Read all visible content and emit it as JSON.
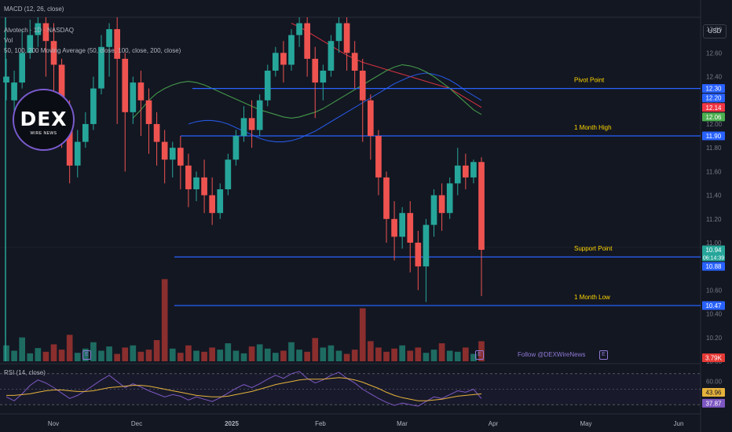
{
  "indicators": {
    "macd": "MACD (12, 26, close)",
    "symbol": "Alvotech · 1D · NASDAQ",
    "vol": "Vol",
    "ma": "50, 100, 200 Moving Average (50, close, 100, close, 200, close)",
    "rsi": "RSI (14, close)"
  },
  "currency": "USD",
  "follow_text": "Follow @DEXWireNews",
  "event_icon": "E",
  "logo": {
    "big": "DEX",
    "small": "WIRE NEWS"
  },
  "colors": {
    "up": "#26a69a",
    "down": "#ef5350",
    "level": "#2962ff",
    "ma50": "#4caf50",
    "ma100": "#2962ff",
    "ma200": "#f23645",
    "rsi": "#7e57c2",
    "rsi_ma": "#e6b23c",
    "annotation": "#ffd600"
  },
  "chart_data": {
    "type": "candlestick",
    "x_ticks": [
      "Nov",
      "Dec",
      "2025",
      "Feb",
      "Mar",
      "Apr",
      "May",
      "Jun"
    ],
    "y_ticks": [
      "12.80",
      "12.60",
      "12.40",
      "12.20",
      "12.00",
      "11.80",
      "11.60",
      "11.40",
      "11.20",
      "11.00",
      "10.80",
      "10.60",
      "10.40",
      "10.20",
      "10.00"
    ],
    "ylim": [
      10.0,
      12.9
    ],
    "levels": [
      {
        "name": "Pivot Point",
        "value": 12.3
      },
      {
        "name": "1 Month High",
        "value": 11.9
      },
      {
        "name": "Support Point",
        "value": 10.88
      },
      {
        "name": "1 Month Low",
        "value": 10.47
      }
    ],
    "price_badges": [
      {
        "label": "12.30",
        "value": 12.3,
        "color": "#2962ff"
      },
      {
        "label": "12.20",
        "value": 12.22,
        "color": "#2962ff"
      },
      {
        "label": "12.14",
        "value": 12.14,
        "color": "#f23645"
      },
      {
        "label": "12.06",
        "value": 12.06,
        "color": "#4caf50"
      },
      {
        "label": "11.90",
        "value": 11.9,
        "color": "#2962ff"
      },
      {
        "label": "10.94",
        "value": 10.94,
        "color": "#26a69a",
        "sub": "06:14:39"
      },
      {
        "label": "10.88",
        "value": 10.8,
        "color": "#2962ff"
      },
      {
        "label": "10.47",
        "value": 10.47,
        "color": "#2962ff"
      }
    ],
    "volume_badge": "3.79K",
    "candles": [
      [
        12.35,
        12.55,
        12.4,
        12.2
      ],
      [
        12.2,
        12.45,
        12.35,
        12.05
      ],
      [
        12.35,
        12.8,
        12.6,
        12.3
      ],
      [
        12.6,
        12.88,
        12.75,
        12.55
      ],
      [
        12.75,
        12.9,
        12.85,
        12.65
      ],
      [
        12.85,
        12.9,
        12.7,
        12.4
      ],
      [
        12.7,
        12.85,
        12.5,
        12.1
      ],
      [
        12.5,
        12.55,
        12.1,
        11.8
      ],
      [
        12.1,
        12.2,
        11.65,
        11.5
      ],
      [
        11.65,
        11.95,
        11.85,
        11.55
      ],
      [
        11.85,
        12.1,
        12.0,
        11.8
      ],
      [
        12.0,
        12.4,
        12.3,
        11.95
      ],
      [
        12.3,
        12.75,
        12.65,
        12.25
      ],
      [
        12.65,
        12.85,
        12.8,
        12.4
      ],
      [
        12.8,
        12.9,
        12.55,
        12.0
      ],
      [
        12.55,
        12.6,
        12.1,
        11.6
      ],
      [
        12.1,
        12.4,
        12.35,
        12.0
      ],
      [
        12.35,
        12.45,
        12.2,
        11.9
      ],
      [
        12.2,
        12.3,
        12.0,
        11.75
      ],
      [
        12.0,
        12.1,
        11.85,
        11.65
      ],
      [
        11.85,
        11.95,
        11.7,
        11.5
      ],
      [
        11.7,
        11.85,
        11.8,
        11.55
      ],
      [
        11.8,
        11.9,
        11.65,
        11.45
      ],
      [
        11.65,
        11.75,
        11.45,
        11.3
      ],
      [
        11.45,
        11.6,
        11.55,
        11.35
      ],
      [
        11.55,
        11.7,
        11.4,
        11.25
      ],
      [
        11.4,
        11.55,
        11.25,
        11.15
      ],
      [
        11.25,
        11.5,
        11.45,
        11.2
      ],
      [
        11.45,
        11.75,
        11.7,
        11.4
      ],
      [
        11.7,
        11.95,
        11.9,
        11.65
      ],
      [
        11.9,
        12.15,
        12.05,
        11.85
      ],
      [
        12.05,
        12.2,
        11.95,
        11.8
      ],
      [
        11.95,
        12.25,
        12.2,
        11.9
      ],
      [
        12.2,
        12.5,
        12.45,
        12.15
      ],
      [
        12.45,
        12.65,
        12.6,
        12.4
      ],
      [
        12.6,
        12.7,
        12.5,
        12.35
      ],
      [
        12.5,
        12.8,
        12.75,
        12.45
      ],
      [
        12.75,
        12.9,
        12.85,
        12.65
      ],
      [
        12.85,
        12.9,
        12.55,
        12.4
      ],
      [
        12.55,
        12.65,
        12.35,
        12.05
      ],
      [
        12.35,
        12.5,
        12.45,
        12.2
      ],
      [
        12.45,
        12.75,
        12.7,
        12.4
      ],
      [
        12.7,
        12.9,
        12.85,
        12.6
      ],
      [
        12.85,
        12.9,
        12.6,
        12.45
      ],
      [
        12.6,
        12.7,
        12.45,
        12.3
      ],
      [
        12.45,
        12.55,
        12.2,
        11.85
      ],
      [
        12.2,
        12.25,
        11.9,
        11.7
      ],
      [
        11.9,
        11.95,
        11.55,
        11.4
      ],
      [
        11.55,
        11.6,
        11.2,
        11.0
      ],
      [
        11.2,
        11.35,
        11.05,
        10.85
      ],
      [
        11.05,
        11.3,
        11.25,
        10.95
      ],
      [
        11.25,
        11.35,
        11.0,
        10.75
      ],
      [
        11.0,
        11.1,
        10.8,
        10.6
      ],
      [
        10.8,
        11.2,
        11.15,
        10.5
      ],
      [
        11.15,
        11.45,
        11.4,
        11.05
      ],
      [
        11.4,
        11.5,
        11.25,
        11.1
      ],
      [
        11.25,
        11.55,
        11.5,
        11.2
      ],
      [
        11.5,
        11.8,
        11.65,
        11.4
      ],
      [
        11.65,
        11.75,
        11.55,
        11.45
      ],
      [
        11.55,
        11.7,
        11.68,
        11.5
      ],
      [
        11.68,
        11.72,
        10.94,
        10.55
      ]
    ],
    "volume": [
      3.0,
      2.0,
      4.5,
      1.5,
      2.5,
      1.8,
      3.2,
      2.2,
      5.0,
      1.6,
      2.4,
      3.6,
      2.0,
      2.8,
      1.4,
      2.6,
      3.0,
      1.8,
      2.2,
      4.0,
      15.5,
      2.4,
      1.6,
      3.0,
      2.0,
      1.8,
      2.6,
      2.2,
      3.4,
      2.0,
      1.5,
      2.8,
      3.2,
      2.4,
      1.6,
      2.0,
      3.6,
      2.2,
      1.8,
      4.4,
      2.6,
      3.0,
      2.0,
      1.4,
      2.2,
      10.0,
      3.8,
      2.6,
      1.8,
      2.4,
      3.0,
      2.0,
      2.6,
      1.6,
      2.2,
      3.4,
      2.0,
      1.8,
      2.6,
      1.4,
      3.79
    ],
    "ma50": [
      12.05,
      12.12,
      12.2,
      12.26,
      12.3,
      12.33,
      12.35,
      12.36,
      12.35,
      12.33,
      12.3,
      12.27,
      12.24,
      12.21,
      12.18,
      12.15,
      12.12,
      12.1,
      12.08,
      12.06,
      12.05,
      12.06,
      12.08,
      12.1,
      12.13,
      12.17,
      12.21,
      12.25,
      12.29,
      12.33,
      12.37,
      12.41,
      12.45,
      12.48,
      12.5,
      12.49,
      12.47,
      12.44,
      12.4,
      12.35,
      12.3,
      12.24,
      12.18,
      12.12,
      12.08
    ],
    "ma100": [
      12.0,
      12.02,
      12.03,
      12.03,
      12.02,
      12.0,
      11.97,
      11.94,
      11.91,
      11.88,
      11.86,
      11.85,
      11.85,
      11.86,
      11.88,
      11.91,
      11.94,
      11.98,
      12.02,
      12.06,
      12.1,
      12.14,
      12.18,
      12.22,
      12.26,
      12.3,
      12.34,
      12.37,
      12.4,
      12.42,
      12.43,
      12.42,
      12.4,
      12.37,
      12.33,
      12.28,
      12.24,
      12.2
    ],
    "ma200": [
      12.85,
      12.82,
      12.78,
      12.74,
      12.7,
      12.66,
      12.62,
      12.58,
      12.55,
      12.52,
      12.5,
      12.48,
      12.46,
      12.44,
      12.42,
      12.4,
      12.38,
      12.36,
      12.34,
      12.32,
      12.3,
      12.26,
      12.22,
      12.18,
      12.14
    ],
    "rsi": {
      "ticks": [
        "60.00",
        "43.96",
        "37.87"
      ],
      "ylim": [
        20,
        80
      ],
      "rsi": [
        40,
        35,
        44,
        55,
        62,
        58,
        52,
        45,
        38,
        42,
        48,
        55,
        62,
        68,
        60,
        52,
        57,
        53,
        48,
        44,
        40,
        43,
        41,
        36,
        40,
        37,
        34,
        39,
        45,
        51,
        56,
        52,
        57,
        63,
        68,
        64,
        70,
        73,
        64,
        58,
        62,
        68,
        72,
        64,
        58,
        50,
        44,
        38,
        33,
        29,
        32,
        30,
        28,
        34,
        40,
        38,
        43,
        48,
        46,
        50,
        37.87
      ],
      "ma": [
        42,
        42,
        43,
        44,
        46,
        48,
        49,
        49,
        48,
        47,
        47,
        48,
        50,
        52,
        53,
        54,
        55,
        55,
        54,
        52,
        50,
        48,
        46,
        44,
        42,
        41,
        40,
        40,
        41,
        43,
        45,
        47,
        50,
        53,
        56,
        58,
        60,
        62,
        63,
        63,
        63,
        64,
        65,
        64,
        62,
        59,
        55,
        51,
        46,
        42,
        39,
        37,
        35,
        35,
        36,
        37,
        39,
        41,
        42,
        43,
        43.96
      ]
    }
  }
}
